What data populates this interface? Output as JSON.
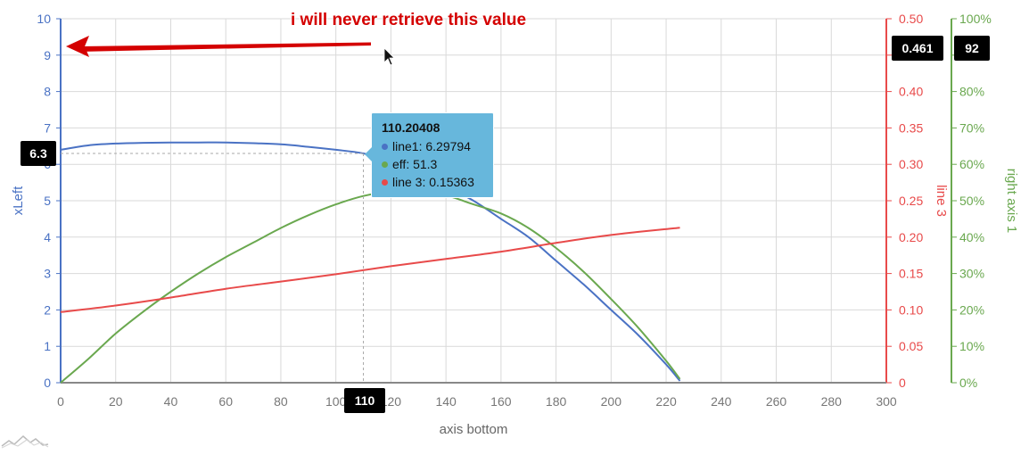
{
  "chart_data": {
    "type": "line",
    "xlabel": "axis bottom",
    "ylabel_left": "xLeft",
    "ylabel_right1": "line 3",
    "ylabel_right2": "right axis 1",
    "x_range": [
      0,
      300
    ],
    "x_ticks": [
      "0",
      "20",
      "40",
      "60",
      "80",
      "100",
      "120",
      "140",
      "160",
      "180",
      "200",
      "220",
      "240",
      "260",
      "280",
      "300"
    ],
    "y_left_range": [
      0,
      10
    ],
    "y_left_ticks": [
      "0",
      "1",
      "2",
      "3",
      "4",
      "5",
      "6",
      "7",
      "8",
      "9",
      "10"
    ],
    "y_right1_range": [
      0,
      0.5
    ],
    "y_right1_ticks": [
      "0",
      "0.05",
      "0.10",
      "0.15",
      "0.20",
      "0.25",
      "0.30",
      "0.35",
      "0.40",
      "0.45",
      "0.50"
    ],
    "y_right2_range": [
      0,
      100
    ],
    "y_right2_ticks": [
      "0%",
      "10%",
      "20%",
      "30%",
      "40%",
      "50%",
      "60%",
      "70%",
      "80%",
      "90%",
      "100%"
    ],
    "grid": true,
    "series": [
      {
        "name": "line1",
        "axis": "left",
        "color": "#4a72c4",
        "x": [
          0,
          10,
          20,
          30,
          40,
          50,
          60,
          70,
          80,
          90,
          100,
          110,
          120,
          130,
          140,
          150,
          160,
          170,
          180,
          190,
          200,
          210,
          220,
          225
        ],
        "y": [
          6.4,
          6.52,
          6.57,
          6.59,
          6.6,
          6.6,
          6.6,
          6.58,
          6.55,
          6.48,
          6.4,
          6.3,
          6.1,
          5.8,
          5.4,
          5.0,
          4.5,
          4.0,
          3.35,
          2.7,
          2.0,
          1.3,
          0.5,
          0.05
        ]
      },
      {
        "name": "eff",
        "axis": "right2",
        "color": "#6aa84f",
        "x": [
          0,
          10,
          20,
          30,
          40,
          50,
          60,
          70,
          80,
          90,
          100,
          110,
          120,
          130,
          140,
          150,
          160,
          170,
          180,
          190,
          200,
          210,
          220,
          225
        ],
        "y": [
          0,
          6.5,
          13.5,
          19.5,
          25,
          30,
          34.5,
          38.5,
          42.5,
          46,
          49,
          51.3,
          52.5,
          52.8,
          51.5,
          49,
          46.5,
          42.5,
          37,
          30.5,
          23,
          15,
          6,
          1
        ]
      },
      {
        "name": "line 3",
        "axis": "right1",
        "color": "#e84a4a",
        "x": [
          0,
          20,
          40,
          60,
          80,
          100,
          120,
          140,
          160,
          180,
          200,
          225
        ],
        "y": [
          0.097,
          0.106,
          0.117,
          0.129,
          0.139,
          0.149,
          0.16,
          0.17,
          0.18,
          0.192,
          0.203,
          0.213
        ]
      }
    ],
    "tooltip": {
      "title": "110.20408",
      "rows": [
        {
          "text": "line1: 6.29794",
          "color": "#4a72c4"
        },
        {
          "text": "eff: 51.3",
          "color": "#6aa84f"
        },
        {
          "text": "line 3: 0.15363",
          "color": "#e84a4a"
        }
      ]
    },
    "cursor": {
      "x": 110,
      "y_left": 6.3
    },
    "badges": {
      "x": "110",
      "y_left": "6.3",
      "y_right1": "0.461",
      "y_right2": "92"
    },
    "annotation": "i will never retrieve this value"
  },
  "colors": {
    "left_axis": "#4a72c4",
    "right1_axis": "#e84a4a",
    "right2_axis": "#6aa84f",
    "tooltip_bg": "#67b7dc"
  },
  "icons": {
    "annotation_arrow": "red-arrow-left-icon",
    "cursor": "mouse-pointer-icon",
    "logo": "amcharts-logo-icon"
  }
}
